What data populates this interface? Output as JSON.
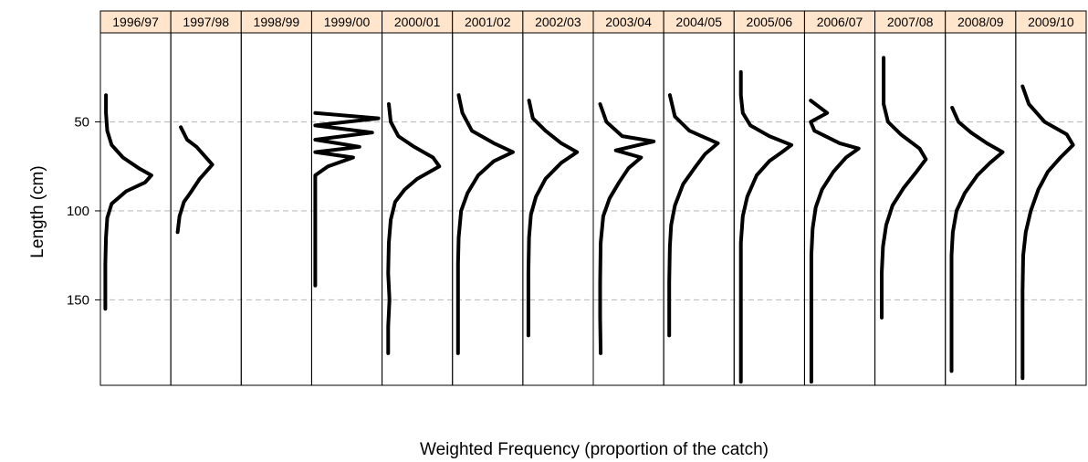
{
  "chart_data": {
    "type": "line",
    "layout": "trellis-panels",
    "xlabel": "Weighted Frequency (proportion of the catch)",
    "ylabel": "Length (cm)",
    "y_axis_reversed": true,
    "ylim": [
      0,
      198
    ],
    "yticks": [
      50,
      100,
      150
    ],
    "grid": "horizontal-dashed",
    "strip_color": "#ffe5cc",
    "line_color": "#000000",
    "series": [
      {
        "name": "1996/97",
        "points": [
          [
            0.03,
            35
          ],
          [
            0.03,
            45
          ],
          [
            0.05,
            55
          ],
          [
            0.12,
            63
          ],
          [
            0.3,
            70
          ],
          [
            0.55,
            76
          ],
          [
            0.75,
            80
          ],
          [
            0.65,
            84
          ],
          [
            0.35,
            89
          ],
          [
            0.12,
            96
          ],
          [
            0.05,
            104
          ],
          [
            0.03,
            115
          ],
          [
            0.02,
            130
          ],
          [
            0.02,
            145
          ],
          [
            0.02,
            155
          ]
        ]
      },
      {
        "name": "1997/98",
        "points": [
          [
            0.1,
            53
          ],
          [
            0.2,
            60
          ],
          [
            0.35,
            64
          ],
          [
            0.5,
            70
          ],
          [
            0.6,
            74
          ],
          [
            0.4,
            82
          ],
          [
            0.25,
            90
          ],
          [
            0.15,
            95
          ],
          [
            0.08,
            103
          ],
          [
            0.05,
            112
          ]
        ]
      },
      {
        "name": "1998/99",
        "points": []
      },
      {
        "name": "1999/00",
        "points": [
          [
            0.0,
            45
          ],
          [
            1.0,
            48
          ],
          [
            0.0,
            52
          ],
          [
            0.9,
            56
          ],
          [
            0.0,
            60
          ],
          [
            0.7,
            64
          ],
          [
            0.0,
            67
          ],
          [
            0.6,
            70
          ],
          [
            0.2,
            75
          ],
          [
            0.0,
            80
          ],
          [
            0.0,
            100
          ],
          [
            0.0,
            120
          ],
          [
            0.0,
            142
          ]
        ]
      },
      {
        "name": "2000/01",
        "points": [
          [
            0.05,
            40
          ],
          [
            0.08,
            50
          ],
          [
            0.2,
            58
          ],
          [
            0.45,
            64
          ],
          [
            0.75,
            70
          ],
          [
            0.85,
            75
          ],
          [
            0.5,
            82
          ],
          [
            0.3,
            88
          ],
          [
            0.15,
            95
          ],
          [
            0.08,
            105
          ],
          [
            0.05,
            118
          ],
          [
            0.04,
            135
          ],
          [
            0.06,
            150
          ],
          [
            0.04,
            165
          ],
          [
            0.04,
            180
          ]
        ]
      },
      {
        "name": "2001/02",
        "points": [
          [
            0.04,
            35
          ],
          [
            0.1,
            45
          ],
          [
            0.25,
            55
          ],
          [
            0.6,
            62
          ],
          [
            0.9,
            67
          ],
          [
            0.6,
            72
          ],
          [
            0.35,
            80
          ],
          [
            0.18,
            90
          ],
          [
            0.08,
            100
          ],
          [
            0.04,
            115
          ],
          [
            0.03,
            130
          ],
          [
            0.03,
            150
          ],
          [
            0.03,
            180
          ]
        ]
      },
      {
        "name": "2002/03",
        "points": [
          [
            0.04,
            38
          ],
          [
            0.1,
            48
          ],
          [
            0.3,
            55
          ],
          [
            0.55,
            62
          ],
          [
            0.8,
            67
          ],
          [
            0.55,
            73
          ],
          [
            0.3,
            82
          ],
          [
            0.15,
            92
          ],
          [
            0.07,
            102
          ],
          [
            0.04,
            115
          ],
          [
            0.03,
            135
          ],
          [
            0.03,
            155
          ],
          [
            0.03,
            170
          ]
        ]
      },
      {
        "name": "2003/04",
        "points": [
          [
            0.05,
            40
          ],
          [
            0.15,
            50
          ],
          [
            0.4,
            58
          ],
          [
            0.9,
            61
          ],
          [
            0.3,
            66
          ],
          [
            0.7,
            70
          ],
          [
            0.5,
            76
          ],
          [
            0.35,
            84
          ],
          [
            0.2,
            93
          ],
          [
            0.1,
            103
          ],
          [
            0.06,
            118
          ],
          [
            0.05,
            140
          ],
          [
            0.05,
            160
          ],
          [
            0.06,
            180
          ]
        ]
      },
      {
        "name": "2004/05",
        "points": [
          [
            0.04,
            35
          ],
          [
            0.12,
            47
          ],
          [
            0.35,
            55
          ],
          [
            0.8,
            62
          ],
          [
            0.6,
            68
          ],
          [
            0.45,
            75
          ],
          [
            0.25,
            85
          ],
          [
            0.12,
            97
          ],
          [
            0.06,
            108
          ],
          [
            0.04,
            120
          ],
          [
            0.03,
            140
          ],
          [
            0.03,
            170
          ]
        ]
      },
      {
        "name": "2005/06",
        "points": [
          [
            0.05,
            22
          ],
          [
            0.05,
            35
          ],
          [
            0.08,
            45
          ],
          [
            0.2,
            52
          ],
          [
            0.5,
            58
          ],
          [
            0.85,
            63
          ],
          [
            0.7,
            67
          ],
          [
            0.5,
            72
          ],
          [
            0.3,
            80
          ],
          [
            0.15,
            92
          ],
          [
            0.08,
            103
          ],
          [
            0.05,
            118
          ],
          [
            0.05,
            140
          ],
          [
            0.05,
            165
          ],
          [
            0.05,
            196
          ]
        ]
      },
      {
        "name": "2006/07",
        "points": [
          [
            0.04,
            38
          ],
          [
            0.3,
            45
          ],
          [
            0.04,
            50
          ],
          [
            0.1,
            55
          ],
          [
            0.5,
            62
          ],
          [
            0.8,
            65
          ],
          [
            0.6,
            70
          ],
          [
            0.4,
            78
          ],
          [
            0.22,
            88
          ],
          [
            0.12,
            98
          ],
          [
            0.07,
            110
          ],
          [
            0.05,
            125
          ],
          [
            0.05,
            140
          ],
          [
            0.05,
            196
          ]
        ]
      },
      {
        "name": "2007/08",
        "points": [
          [
            0.08,
            14
          ],
          [
            0.08,
            40
          ],
          [
            0.15,
            50
          ],
          [
            0.35,
            57
          ],
          [
            0.65,
            65
          ],
          [
            0.75,
            71
          ],
          [
            0.6,
            78
          ],
          [
            0.4,
            87
          ],
          [
            0.22,
            97
          ],
          [
            0.12,
            108
          ],
          [
            0.07,
            120
          ],
          [
            0.05,
            135
          ],
          [
            0.05,
            160
          ]
        ]
      },
      {
        "name": "2008/09",
        "points": [
          [
            0.05,
            42
          ],
          [
            0.15,
            50
          ],
          [
            0.35,
            56
          ],
          [
            0.6,
            62
          ],
          [
            0.85,
            67
          ],
          [
            0.65,
            73
          ],
          [
            0.45,
            80
          ],
          [
            0.25,
            90
          ],
          [
            0.12,
            100
          ],
          [
            0.06,
            112
          ],
          [
            0.04,
            125
          ],
          [
            0.04,
            150
          ],
          [
            0.04,
            190
          ]
        ]
      },
      {
        "name": "2009/10",
        "points": [
          [
            0.05,
            30
          ],
          [
            0.15,
            40
          ],
          [
            0.4,
            50
          ],
          [
            0.75,
            57
          ],
          [
            0.85,
            63
          ],
          [
            0.65,
            70
          ],
          [
            0.45,
            78
          ],
          [
            0.3,
            88
          ],
          [
            0.18,
            100
          ],
          [
            0.1,
            112
          ],
          [
            0.06,
            125
          ],
          [
            0.05,
            145
          ],
          [
            0.05,
            194
          ]
        ]
      }
    ]
  }
}
